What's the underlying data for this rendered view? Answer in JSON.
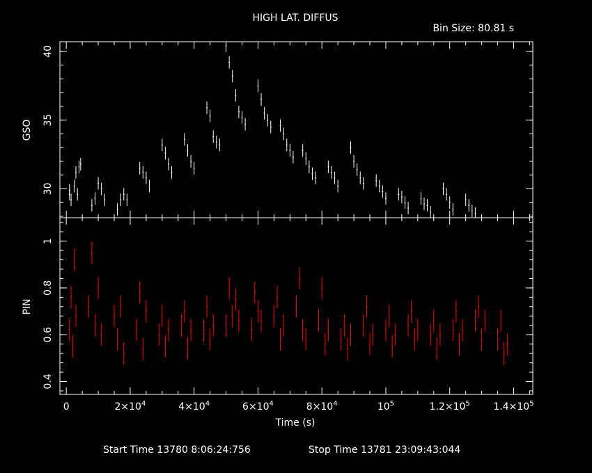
{
  "header": {
    "title": "HIGH LAT. DIFFUS",
    "bin_size": "Bin Size: 80.81 s"
  },
  "footer": {
    "start": "Start Time 13780  8:06:24:756",
    "stop": "Stop Time 13781 23:09:43:044"
  },
  "colors": {
    "background": "#000000",
    "gso": "#ffffff",
    "pin": "#ff0000",
    "axes": "#ffffff"
  },
  "chart_data": [
    {
      "type": "scatter",
      "panel": "top",
      "ylabel": "GSO",
      "xlim": [
        -2000,
        146000
      ],
      "ylim": [
        27.9,
        40.7
      ],
      "yticks_major": [
        30,
        35,
        40
      ],
      "ytick_labels": [
        "30",
        "35",
        "40"
      ],
      "series": [
        {
          "color": "#ffffff",
          "points": [
            [
              1000,
              29.6
            ],
            [
              1500,
              29.2
            ],
            [
              2500,
              30.2
            ],
            [
              3500,
              29.6
            ],
            [
              4500,
              31.8
            ],
            [
              8000,
              28.8
            ],
            [
              9000,
              29.3
            ],
            [
              10000,
              30.4
            ],
            [
              11000,
              30.0
            ],
            [
              12000,
              29.2
            ],
            [
              16000,
              28.5
            ],
            [
              17000,
              29.2
            ],
            [
              18000,
              29.6
            ],
            [
              19000,
              29.2
            ],
            [
              23000,
              31.5
            ],
            [
              24000,
              31.2
            ],
            [
              25000,
              30.8
            ],
            [
              26000,
              30.2
            ],
            [
              30000,
              33.2
            ],
            [
              31000,
              32.6
            ],
            [
              32000,
              31.8
            ],
            [
              33000,
              31.2
            ],
            [
              37000,
              33.6
            ],
            [
              38000,
              32.8
            ],
            [
              39000,
              32.0
            ],
            [
              40000,
              31.5
            ],
            [
              44000,
              35.9
            ],
            [
              45000,
              35.3
            ],
            [
              46000,
              33.8
            ],
            [
              47000,
              33.4
            ],
            [
              48000,
              33.2
            ],
            [
              50000,
              40.4
            ],
            [
              51000,
              39.2
            ],
            [
              52000,
              38.2
            ],
            [
              53000,
              36.8
            ],
            [
              54000,
              35.6
            ],
            [
              55000,
              35.2
            ],
            [
              56000,
              34.7
            ],
            [
              60000,
              37.5
            ],
            [
              61000,
              36.5
            ],
            [
              62000,
              35.5
            ],
            [
              63000,
              35.0
            ],
            [
              64000,
              34.5
            ],
            [
              67000,
              34.6
            ],
            [
              68000,
              34.0
            ],
            [
              69000,
              33.2
            ],
            [
              70000,
              32.8
            ],
            [
              71000,
              32.3
            ],
            [
              74000,
              32.8
            ],
            [
              75000,
              32.2
            ],
            [
              76000,
              31.6
            ],
            [
              77000,
              31.1
            ],
            [
              78000,
              30.8
            ],
            [
              82000,
              31.6
            ],
            [
              83000,
              31.2
            ],
            [
              84000,
              30.8
            ],
            [
              85000,
              30.2
            ],
            [
              89000,
              33.0
            ],
            [
              90000,
              32.0
            ],
            [
              91000,
              31.4
            ],
            [
              92000,
              30.8
            ],
            [
              93000,
              30.4
            ],
            [
              97000,
              30.6
            ],
            [
              98000,
              30.2
            ],
            [
              99000,
              29.8
            ],
            [
              100000,
              29.3
            ],
            [
              104000,
              29.6
            ],
            [
              105000,
              29.4
            ],
            [
              106000,
              29.0
            ],
            [
              107000,
              28.6
            ],
            [
              111000,
              29.3
            ],
            [
              112000,
              28.9
            ],
            [
              113000,
              28.8
            ],
            [
              114000,
              28.3
            ],
            [
              118000,
              30.0
            ],
            [
              119000,
              29.6
            ],
            [
              120000,
              29.0
            ],
            [
              121000,
              28.5
            ],
            [
              125000,
              29.2
            ],
            [
              126000,
              28.8
            ],
            [
              127000,
              28.4
            ],
            [
              128000,
              28.2
            ],
            [
              1000,
              29.9
            ],
            [
              3000,
              31.2
            ],
            [
              4000,
              31.6
            ]
          ]
        }
      ]
    },
    {
      "type": "scatter",
      "panel": "bottom",
      "ylabel": "PIN",
      "xlabel": "Time (s)",
      "xlim": [
        -2000,
        146000
      ],
      "ylim": [
        0.345,
        1.1
      ],
      "yticks_major": [
        0.4,
        0.6,
        0.8,
        1.0
      ],
      "ytick_labels": [
        "0.4",
        "0.6",
        "0.8",
        "1"
      ],
      "xticks_major": [
        0,
        20000,
        40000,
        60000,
        80000,
        100000,
        120000,
        140000
      ],
      "xtick_labels": [
        {
          "base": "0",
          "exp": ""
        },
        {
          "base": "2×10",
          "exp": "4"
        },
        {
          "base": "4×10",
          "exp": "4"
        },
        {
          "base": "6×10",
          "exp": "4"
        },
        {
          "base": "8×10",
          "exp": "4"
        },
        {
          "base": "10",
          "exp": "5"
        },
        {
          "base": "1.2×10",
          "exp": "5"
        },
        {
          "base": "1.4×10",
          "exp": "5"
        }
      ],
      "series": [
        {
          "color": "#ff0000",
          "points": [
            [
              1000,
              0.62
            ],
            [
              1500,
              0.76
            ],
            [
              2000,
              0.55
            ],
            [
              2500,
              0.92
            ],
            [
              3000,
              0.68
            ],
            [
              7000,
              0.72
            ],
            [
              8000,
              0.95
            ],
            [
              9000,
              0.64
            ],
            [
              10000,
              0.8
            ],
            [
              11000,
              0.6
            ],
            [
              15000,
              0.68
            ],
            [
              16000,
              0.58
            ],
            [
              17000,
              0.72
            ],
            [
              18000,
              0.52
            ],
            [
              22000,
              0.62
            ],
            [
              23000,
              0.78
            ],
            [
              24000,
              0.54
            ],
            [
              25000,
              0.7
            ],
            [
              29000,
              0.6
            ],
            [
              30000,
              0.68
            ],
            [
              31000,
              0.55
            ],
            [
              32000,
              0.62
            ],
            [
              36000,
              0.64
            ],
            [
              37000,
              0.7
            ],
            [
              38000,
              0.54
            ],
            [
              39000,
              0.62
            ],
            [
              43000,
              0.62
            ],
            [
              44000,
              0.72
            ],
            [
              45000,
              0.58
            ],
            [
              46000,
              0.64
            ],
            [
              50000,
              0.64
            ],
            [
              51000,
              0.8
            ],
            [
              52000,
              0.68
            ],
            [
              53000,
              0.75
            ],
            [
              54000,
              0.66
            ],
            [
              58000,
              0.62
            ],
            [
              59000,
              0.78
            ],
            [
              60000,
              0.7
            ],
            [
              61000,
              0.66
            ],
            [
              65000,
              0.68
            ],
            [
              66000,
              0.76
            ],
            [
              67000,
              0.58
            ],
            [
              68000,
              0.64
            ],
            [
              72000,
              0.72
            ],
            [
              73000,
              0.84
            ],
            [
              74000,
              0.62
            ],
            [
              75000,
              0.58
            ],
            [
              79000,
              0.66
            ],
            [
              80000,
              0.8
            ],
            [
              81000,
              0.56
            ],
            [
              82000,
              0.62
            ],
            [
              86000,
              0.58
            ],
            [
              87000,
              0.64
            ],
            [
              88000,
              0.54
            ],
            [
              89000,
              0.6
            ],
            [
              93000,
              0.64
            ],
            [
              94000,
              0.72
            ],
            [
              95000,
              0.56
            ],
            [
              96000,
              0.6
            ],
            [
              100000,
              0.62
            ],
            [
              101000,
              0.68
            ],
            [
              102000,
              0.55
            ],
            [
              103000,
              0.6
            ],
            [
              107000,
              0.64
            ],
            [
              108000,
              0.7
            ],
            [
              109000,
              0.58
            ],
            [
              110000,
              0.62
            ],
            [
              114000,
              0.6
            ],
            [
              115000,
              0.66
            ],
            [
              116000,
              0.54
            ],
            [
              117000,
              0.6
            ],
            [
              121000,
              0.62
            ],
            [
              122000,
              0.7
            ],
            [
              123000,
              0.56
            ],
            [
              124000,
              0.62
            ],
            [
              128000,
              0.66
            ],
            [
              129000,
              0.72
            ],
            [
              130000,
              0.58
            ],
            [
              131000,
              0.66
            ],
            [
              135000,
              0.58
            ],
            [
              136000,
              0.66
            ],
            [
              137000,
              0.52
            ],
            [
              138000,
              0.56
            ]
          ]
        }
      ]
    }
  ]
}
